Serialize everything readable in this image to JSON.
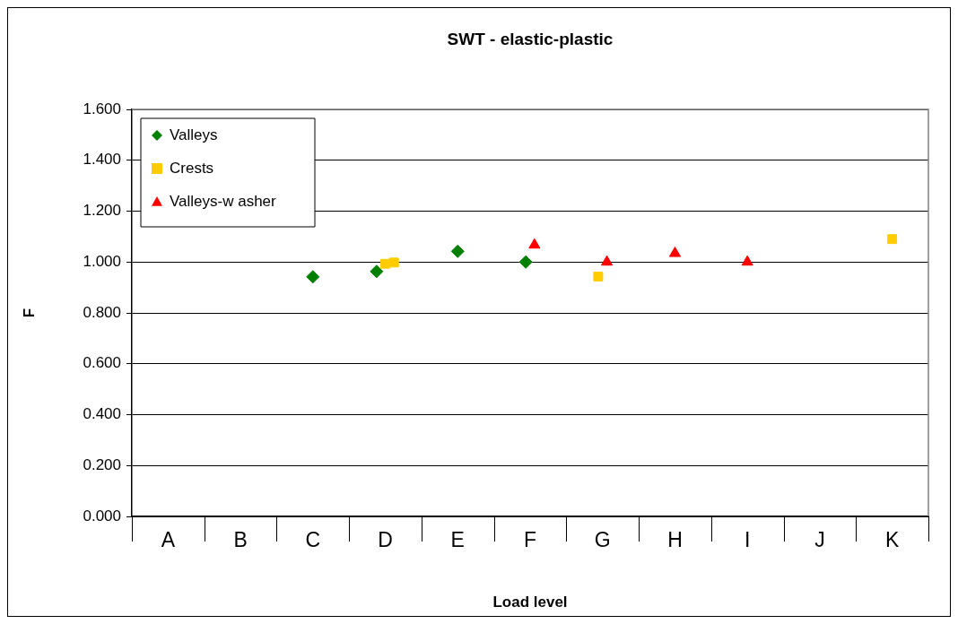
{
  "chart_data": {
    "type": "scatter",
    "title": "SWT - elastic-plastic",
    "xlabel": "Load level",
    "ylabel": "F",
    "categories": [
      "A",
      "B",
      "C",
      "D",
      "E",
      "F",
      "G",
      "H",
      "I",
      "J",
      "K"
    ],
    "ylim": [
      0,
      1.6
    ],
    "yticks": [
      {
        "value": 0,
        "label": "0.000"
      },
      {
        "value": 0.2,
        "label": "0.200"
      },
      {
        "value": 0.4,
        "label": "0.400"
      },
      {
        "value": 0.6,
        "label": "0.600"
      },
      {
        "value": 0.8,
        "label": "0.800"
      },
      {
        "value": 1.0,
        "label": "1.000"
      },
      {
        "value": 1.2,
        "label": "1.200"
      },
      {
        "value": 1.4,
        "label": "1.400"
      },
      {
        "value": 1.6,
        "label": "1.600"
      }
    ],
    "grid": "y",
    "legend": "top left",
    "series": [
      {
        "name": "Valleys",
        "color": "#008000",
        "marker": "diamond",
        "x": [
          "C",
          "D",
          "E",
          "F"
        ],
        "values": [
          0.942,
          0.963,
          1.042,
          1.0
        ]
      },
      {
        "name": "Crests",
        "color": "#ffcc00",
        "marker": "square",
        "x": [
          "D",
          "D",
          "G",
          "K"
        ],
        "values": [
          0.993,
          0.998,
          0.943,
          1.09
        ]
      },
      {
        "name": "Valleys-w asher",
        "color": "#ff0000",
        "marker": "triangle",
        "x": [
          "F",
          "G",
          "H",
          "I"
        ],
        "values": [
          1.067,
          1.0,
          1.034,
          1.0
        ]
      }
    ]
  }
}
